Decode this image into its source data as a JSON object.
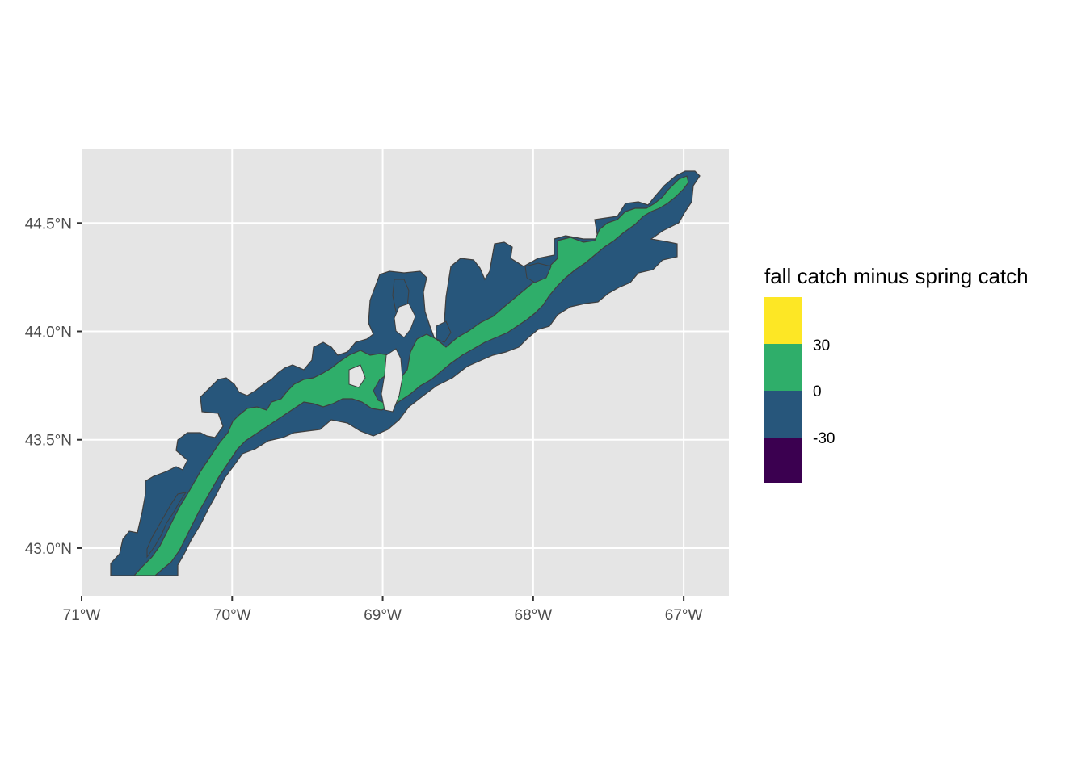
{
  "map": {
    "x_axis": {
      "tick_values": [
        -71,
        -70,
        -69,
        -68,
        -67
      ],
      "tick_labels": [
        "71°W",
        "70°W",
        "69°W",
        "68°W",
        "67°W"
      ],
      "range": [
        -71.0,
        -66.7
      ]
    },
    "y_axis": {
      "tick_values": [
        43.0,
        43.5,
        44.0,
        44.5
      ],
      "tick_labels": [
        "43.0°N",
        "43.5°N",
        "44.0°N",
        "44.5°N"
      ],
      "range": [
        42.78,
        44.84
      ]
    },
    "colors": {
      "panel_background": "#e5e5e5",
      "gridline": "#ffffff",
      "region_outline": "#3f3f3f",
      "negative_fill": "#27567b",
      "positive_fill": "#2fae6a"
    }
  },
  "legend": {
    "title": "fall catch minus spring catch",
    "breaks": [
      "30",
      "0",
      "-30"
    ],
    "colors": [
      "#fde725",
      "#2fae6a",
      "#27567b",
      "#3b0050"
    ]
  }
}
